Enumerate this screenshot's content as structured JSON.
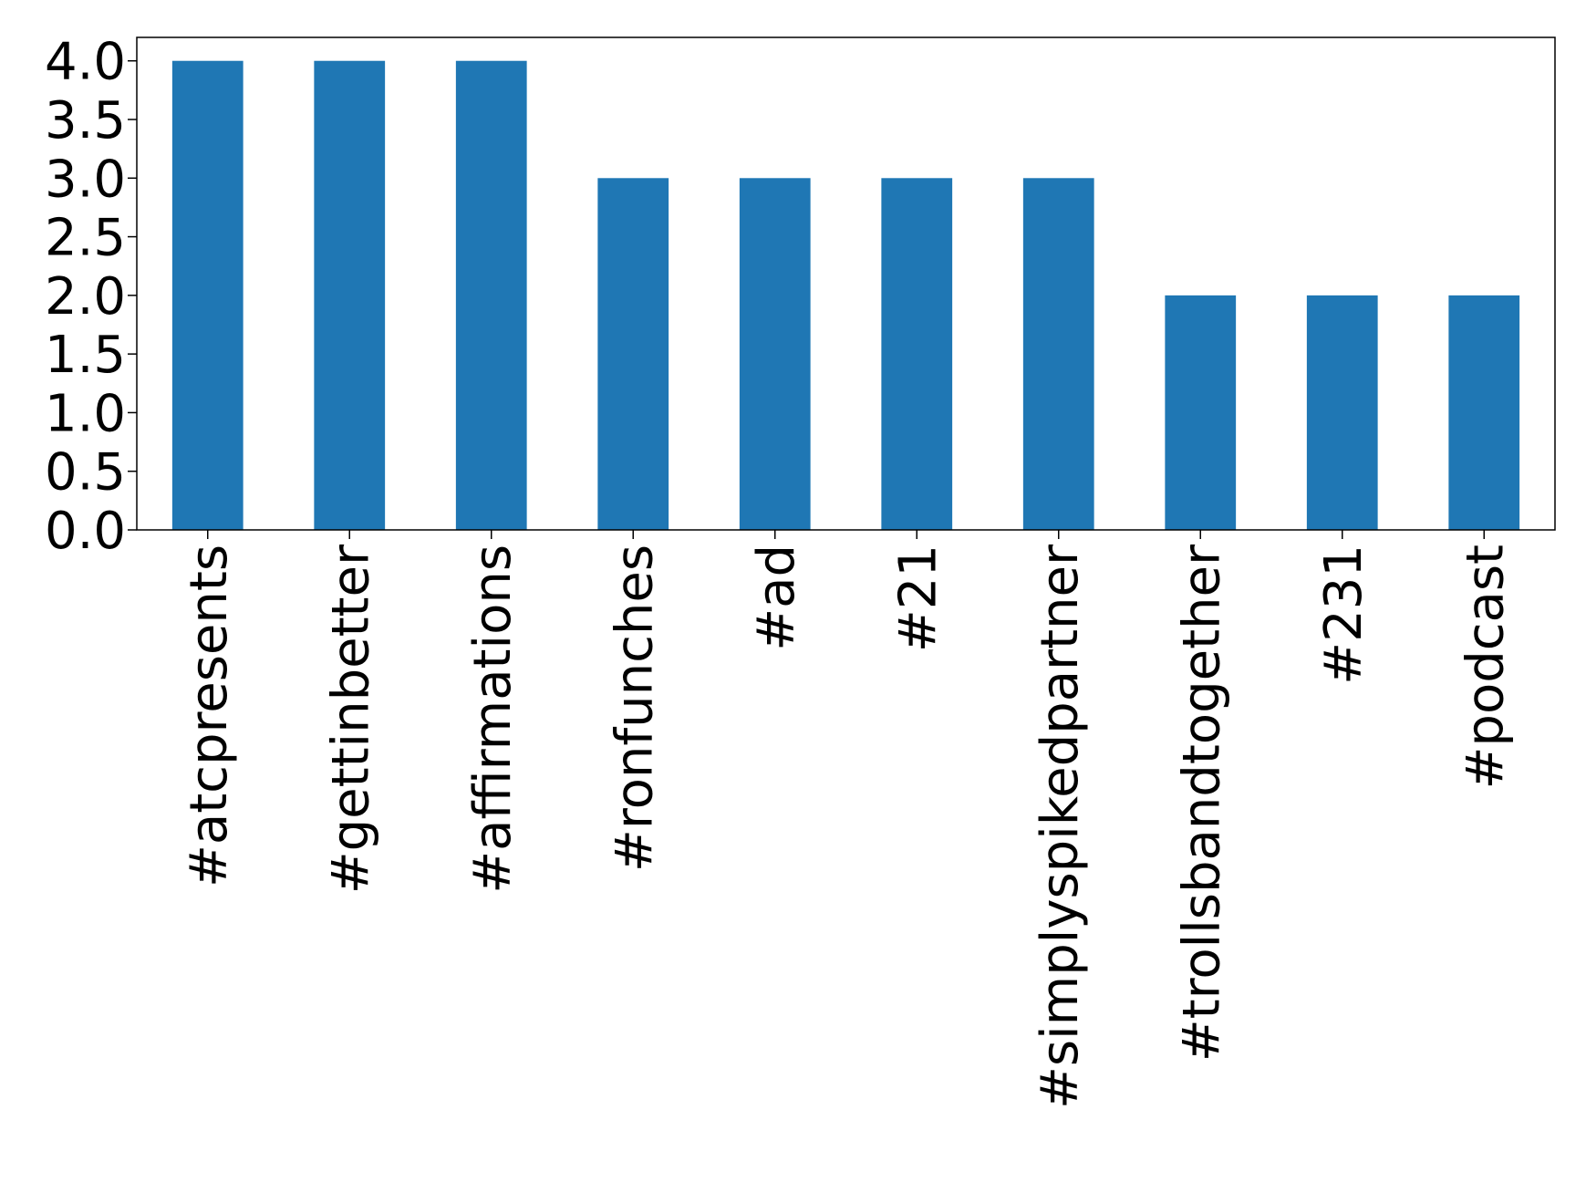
{
  "chart_data": {
    "type": "bar",
    "categories": [
      "#atcpresents",
      "#gettinbetter",
      "#affirmations",
      "#ronfunches",
      "#ad",
      "#21",
      "#simplyspikedpartner",
      "#trollsbandtogether",
      "#231",
      "#podcast"
    ],
    "values": [
      4,
      4,
      4,
      3,
      3,
      3,
      3,
      2,
      2,
      2
    ],
    "ylim": [
      0,
      4.2
    ],
    "yticks": [
      0.0,
      0.5,
      1.0,
      1.5,
      2.0,
      2.5,
      3.0,
      3.5,
      4.0
    ],
    "ytick_labels": [
      "0.0",
      "0.5",
      "1.0",
      "1.5",
      "2.0",
      "2.5",
      "3.0",
      "3.5",
      "4.0"
    ],
    "bar_color": "#1f77b4",
    "grid": false,
    "legend": "none"
  }
}
